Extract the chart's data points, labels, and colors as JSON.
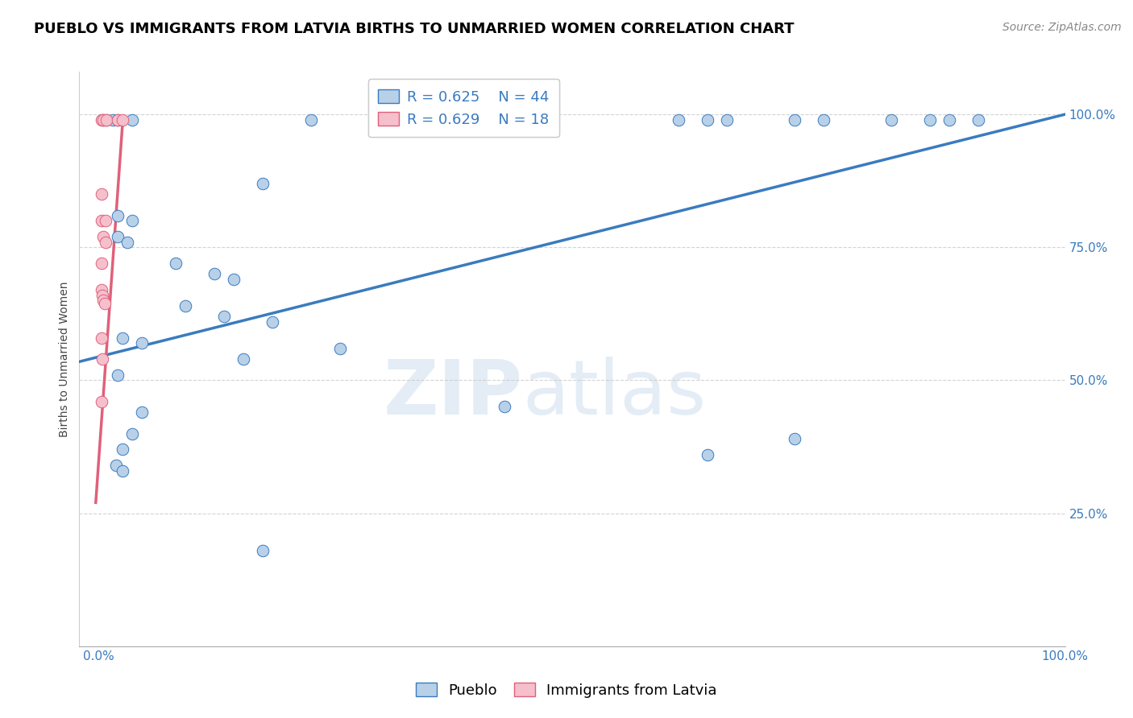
{
  "title": "PUEBLO VS IMMIGRANTS FROM LATVIA BIRTHS TO UNMARRIED WOMEN CORRELATION CHART",
  "source": "Source: ZipAtlas.com",
  "ylabel": "Births to Unmarried Women",
  "watermark_zip": "ZIP",
  "watermark_atlas": "atlas",
  "blue_label": "Pueblo",
  "pink_label": "Immigrants from Latvia",
  "blue_R": "R = 0.625",
  "blue_N": "N = 44",
  "pink_R": "R = 0.629",
  "pink_N": "N = 18",
  "blue_color": "#b8d0e8",
  "pink_color": "#f5bfcc",
  "blue_line_color": "#3a7bbf",
  "pink_line_color": "#e0607a",
  "blue_points": [
    [
      0.5,
      99.0
    ],
    [
      0.8,
      99.0
    ],
    [
      1.5,
      99.0
    ],
    [
      2.0,
      99.0
    ],
    [
      3.5,
      99.0
    ],
    [
      22.0,
      99.0
    ],
    [
      35.0,
      99.0
    ],
    [
      38.0,
      99.0
    ],
    [
      42.0,
      99.0
    ],
    [
      47.0,
      99.0
    ],
    [
      60.0,
      99.0
    ],
    [
      63.0,
      99.0
    ],
    [
      65.0,
      99.0
    ],
    [
      72.0,
      99.0
    ],
    [
      75.0,
      99.0
    ],
    [
      82.0,
      99.0
    ],
    [
      86.0,
      99.0
    ],
    [
      88.0,
      99.0
    ],
    [
      91.0,
      99.0
    ],
    [
      17.0,
      87.0
    ],
    [
      2.0,
      81.0
    ],
    [
      3.5,
      80.0
    ],
    [
      2.0,
      77.0
    ],
    [
      3.0,
      76.0
    ],
    [
      8.0,
      72.0
    ],
    [
      12.0,
      70.0
    ],
    [
      14.0,
      69.0
    ],
    [
      9.0,
      64.0
    ],
    [
      13.0,
      62.0
    ],
    [
      18.0,
      61.0
    ],
    [
      2.5,
      58.0
    ],
    [
      4.5,
      57.0
    ],
    [
      15.0,
      54.0
    ],
    [
      25.0,
      56.0
    ],
    [
      2.0,
      51.0
    ],
    [
      42.0,
      45.0
    ],
    [
      4.5,
      44.0
    ],
    [
      3.5,
      40.0
    ],
    [
      2.5,
      37.0
    ],
    [
      1.8,
      34.0
    ],
    [
      2.5,
      33.0
    ],
    [
      17.0,
      18.0
    ],
    [
      63.0,
      36.0
    ],
    [
      72.0,
      39.0
    ]
  ],
  "pink_points": [
    [
      0.3,
      99.0
    ],
    [
      0.5,
      99.0
    ],
    [
      0.8,
      99.0
    ],
    [
      2.0,
      99.0
    ],
    [
      2.5,
      99.0
    ],
    [
      0.3,
      85.0
    ],
    [
      0.3,
      80.0
    ],
    [
      0.7,
      80.0
    ],
    [
      0.5,
      77.0
    ],
    [
      0.7,
      76.0
    ],
    [
      0.3,
      72.0
    ],
    [
      0.3,
      67.0
    ],
    [
      0.4,
      66.0
    ],
    [
      0.5,
      65.0
    ],
    [
      0.6,
      64.5
    ],
    [
      0.3,
      58.0
    ],
    [
      0.4,
      54.0
    ],
    [
      0.3,
      46.0
    ]
  ],
  "blue_trendline": [
    [
      -2,
      53.5
    ],
    [
      100,
      100
    ]
  ],
  "pink_trendline": [
    [
      -0.3,
      27.0
    ],
    [
      2.5,
      99.0
    ]
  ],
  "xlim": [
    -2,
    100
  ],
  "ylim": [
    0,
    108
  ],
  "ytick_positions": [
    25,
    50,
    75,
    100
  ],
  "ytick_labels": [
    "25.0%",
    "50.0%",
    "75.0%",
    "100.0%"
  ],
  "xtick_left_label": "0.0%",
  "xtick_right_label": "100.0%",
  "grid_color": "#c8c8c8",
  "background_color": "#ffffff",
  "title_fontsize": 13,
  "axis_label_fontsize": 10,
  "tick_fontsize": 11,
  "legend_fontsize": 13,
  "source_fontsize": 10
}
